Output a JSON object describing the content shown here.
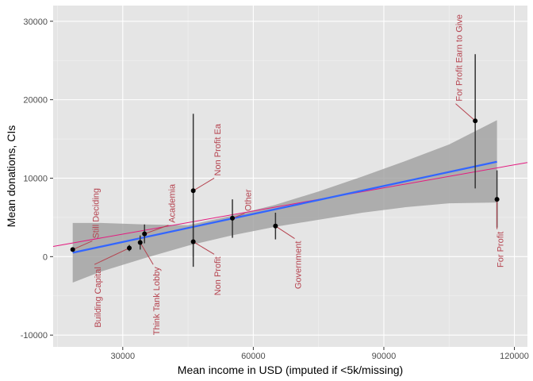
{
  "chart_data": {
    "type": "scatter",
    "title": "",
    "xlabel": "Mean income in USD (imputed if <5k/missing)",
    "ylabel": "Mean donations, CIs",
    "xlim": [
      14000,
      123000
    ],
    "ylim": [
      -11500,
      32000
    ],
    "x_ticks": [
      30000,
      60000,
      90000,
      120000
    ],
    "x_tick_labels": [
      "30000",
      "60000",
      "90000",
      "120000"
    ],
    "y_ticks": [
      -10000,
      0,
      10000,
      20000,
      30000
    ],
    "y_tick_labels": [
      "-10000",
      "0",
      "10000",
      "20000",
      "30000"
    ],
    "grid": true,
    "points": [
      {
        "label": "Still Deciding",
        "x": 18500,
        "y": 900,
        "ci": [
          800,
          1000
        ],
        "label_x": 23000,
        "label_y": 2000
      },
      {
        "label": "Building Capital",
        "x": 31500,
        "y": 1100,
        "ci": [
          700,
          1500
        ],
        "label_x": 23500,
        "label_y": -1000
      },
      {
        "label": "Think Tank Lobby",
        "x": 34000,
        "y": 1800,
        "ci": [
          900,
          2700
        ],
        "label_x": 37000,
        "label_y": -1000
      },
      {
        "label": "Academia",
        "x": 35000,
        "y": 2900,
        "ci": [
          1700,
          4100
        ],
        "label_x": 40500,
        "label_y": 4000
      },
      {
        "label": "Non Profit Ea",
        "x": 46200,
        "y": 8400,
        "ci": [
          -1300,
          18200
        ],
        "label_x": 51000,
        "label_y": 10000
      },
      {
        "label": "Non Profit",
        "x": 46200,
        "y": 1900,
        "ci": [
          0,
          3800
        ],
        "label_x": 51000,
        "label_y": 300
      },
      {
        "label": "Other",
        "x": 55200,
        "y": 4900,
        "ci": [
          2400,
          7300
        ],
        "label_x": 58000,
        "label_y": 5500
      },
      {
        "label": "Government",
        "x": 65100,
        "y": 3900,
        "ci": [
          2200,
          5600
        ],
        "label_x": 69500,
        "label_y": 2300
      },
      {
        "label": "For Profit Earn to Give",
        "x": 111000,
        "y": 17300,
        "ci": [
          8700,
          25800
        ],
        "label_x": 106500,
        "label_y": 19500
      },
      {
        "label": "For Profit",
        "x": 116000,
        "y": 7300,
        "ci": [
          3700,
          11000
        ],
        "label_x": 116000,
        "label_y": 3500
      }
    ],
    "weighted_fit_line": {
      "color": "#3366ff",
      "x": [
        18500,
        116000
      ],
      "y": [
        500,
        12100
      ]
    },
    "confidence_band": {
      "x": [
        18500,
        25000,
        35000,
        45000,
        55000,
        65000,
        75000,
        85000,
        95000,
        105000,
        116000
      ],
      "lower": [
        -3300,
        -1900,
        -200,
        1400,
        2700,
        3800,
        4700,
        5600,
        6300,
        6800,
        6900
      ],
      "upper": [
        4300,
        4300,
        4100,
        4000,
        5200,
        6600,
        8300,
        10200,
        12200,
        14300,
        17400
      ]
    },
    "reference_line": {
      "color": "#e41a7f",
      "x": [
        14000,
        123000
      ],
      "y": [
        1300,
        12000
      ]
    }
  },
  "colors": {
    "panel_background": "#e5e5e5",
    "grid_major": "#ffffff",
    "point": "#000000",
    "errorbar": "#333333",
    "band": "#999999",
    "label": "#b5434f"
  }
}
